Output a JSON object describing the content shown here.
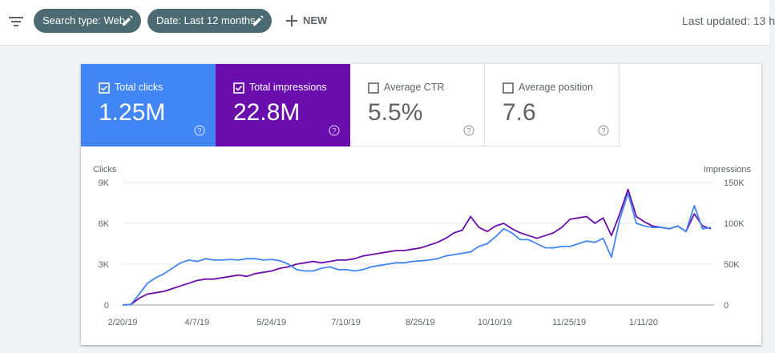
{
  "toolbar": {
    "filter_icon": "filter-list-icon",
    "chips": [
      {
        "label": "Search type: Web",
        "icon": "pencil-icon"
      },
      {
        "label": "Date: Last 12 months",
        "icon": "pencil-icon"
      }
    ],
    "new_label": "NEW",
    "new_icon": "plus-icon",
    "last_updated": "Last updated: 13 h"
  },
  "colors": {
    "clicks": "#4285f4",
    "impressions": "#6a0dad",
    "chip": "#4b6a72"
  },
  "metrics": [
    {
      "label": "Total clicks",
      "value": "1.25M",
      "checked": true
    },
    {
      "label": "Total impressions",
      "value": "22.8M",
      "checked": true
    },
    {
      "label": "Average CTR",
      "value": "5.5%",
      "checked": false
    },
    {
      "label": "Average position",
      "value": "7.6",
      "checked": false
    }
  ],
  "chart_data": {
    "type": "line",
    "left_axis_title": "Clicks",
    "right_axis_title": "Impressions",
    "left_ticks": [
      "9K",
      "6K",
      "3K",
      "0"
    ],
    "right_ticks": [
      "150K",
      "100K",
      "50K",
      "0"
    ],
    "x_ticks": [
      "2/20/19",
      "4/7/19",
      "5/24/19",
      "7/10/19",
      "8/25/19",
      "10/10/19",
      "11/25/19",
      "1/11/20"
    ],
    "ylim_left": [
      0,
      9000
    ],
    "ylim_right": [
      0,
      150000
    ],
    "grid": true,
    "series": [
      {
        "name": "Total clicks",
        "axis": "left",
        "values": [
          0,
          40,
          800,
          1600,
          2000,
          2300,
          2700,
          3100,
          3300,
          3200,
          3400,
          3300,
          3300,
          3350,
          3300,
          3400,
          3400,
          3300,
          3350,
          3250,
          3000,
          2600,
          2500,
          2500,
          2700,
          2800,
          2600,
          2600,
          2500,
          2600,
          2800,
          2900,
          3000,
          3100,
          3100,
          3200,
          3250,
          3300,
          3400,
          3600,
          3700,
          3800,
          3900,
          4300,
          4500,
          5000,
          5600,
          5300,
          4800,
          4800,
          4500,
          4200,
          4200,
          4300,
          4300,
          4500,
          4700,
          4600,
          4900,
          3500,
          6300,
          8200,
          6000,
          5800,
          5700,
          5700,
          5600,
          5800,
          5400,
          7300,
          5600,
          5700
        ]
      },
      {
        "name": "Total impressions",
        "axis": "left",
        "values": [
          0,
          30,
          500,
          800,
          900,
          1000,
          1200,
          1400,
          1600,
          1800,
          1900,
          1900,
          2000,
          2100,
          2200,
          2100,
          2300,
          2400,
          2500,
          2700,
          2800,
          3000,
          3100,
          3200,
          3100,
          3200,
          3300,
          3300,
          3400,
          3600,
          3700,
          3800,
          3900,
          4000,
          4000,
          4100,
          4200,
          4400,
          4600,
          4900,
          5300,
          5500,
          6500,
          5700,
          5400,
          5800,
          6000,
          5600,
          5300,
          5100,
          4900,
          5100,
          5300,
          5700,
          6300,
          6400,
          6500,
          6000,
          6400,
          5100,
          6700,
          8500,
          6500,
          6100,
          5800,
          5700,
          5600,
          5800,
          5400,
          6700,
          5800,
          5600
        ]
      }
    ]
  }
}
